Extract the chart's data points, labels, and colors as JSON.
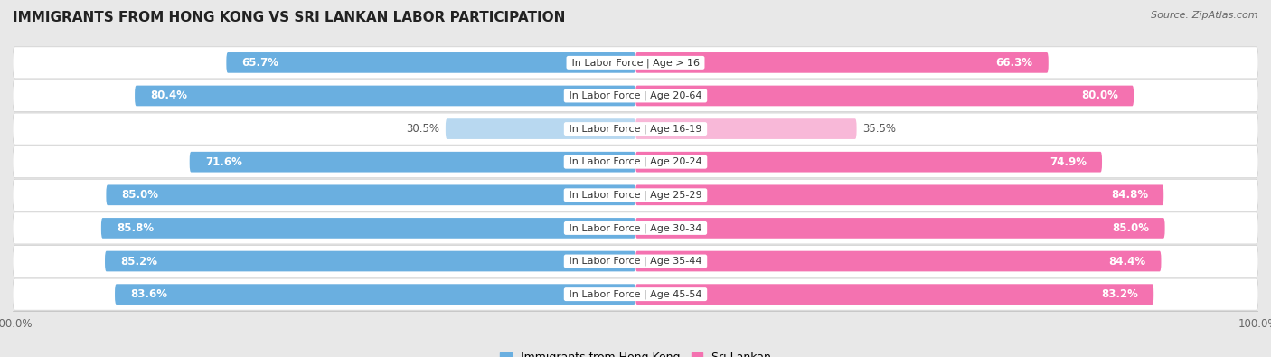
{
  "title": "IMMIGRANTS FROM HONG KONG VS SRI LANKAN LABOR PARTICIPATION",
  "source": "Source: ZipAtlas.com",
  "categories": [
    "In Labor Force | Age > 16",
    "In Labor Force | Age 20-64",
    "In Labor Force | Age 16-19",
    "In Labor Force | Age 20-24",
    "In Labor Force | Age 25-29",
    "In Labor Force | Age 30-34",
    "In Labor Force | Age 35-44",
    "In Labor Force | Age 45-54"
  ],
  "hk_values": [
    65.7,
    80.4,
    30.5,
    71.6,
    85.0,
    85.8,
    85.2,
    83.6
  ],
  "sl_values": [
    66.3,
    80.0,
    35.5,
    74.9,
    84.8,
    85.0,
    84.4,
    83.2
  ],
  "hk_color": "#6aafe0",
  "sl_color": "#f472b0",
  "hk_color_light": "#b8d8f0",
  "sl_color_light": "#f8b8d8",
  "bg_color": "#e8e8e8",
  "row_bg_color": "#f5f5f5",
  "label_color_white": "#ffffff",
  "label_color_dark": "#555555",
  "max_value": 100.0,
  "threshold_white_label": 45,
  "font_size_title": 11,
  "font_size_label": 8.5,
  "font_size_category": 8,
  "font_size_axis": 8.5,
  "legend_label_hk": "Immigrants from Hong Kong",
  "legend_label_sl": "Sri Lankan"
}
